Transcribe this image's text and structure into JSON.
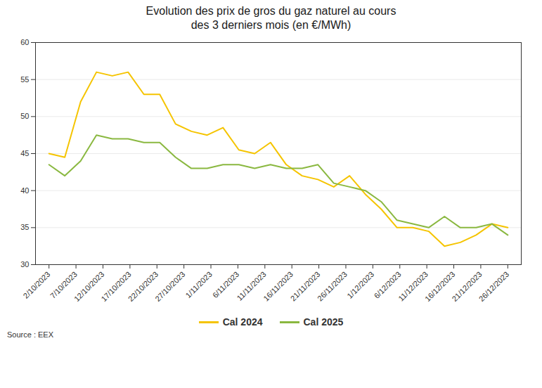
{
  "chart_data": {
    "type": "line",
    "title": "Evolution des prix de gros du gaz naturel au cours\ndes 3 derniers mois (en €/MWh)",
    "caption": "Source : EEX",
    "x": [
      0,
      0.5862068965517241,
      1.1724137931034484,
      1.7586206896551724,
      2.344827586206897,
      2.9310344827586206,
      3.5172413793103448,
      4.103448275862069,
      4.689655172413793,
      5.275862068965517,
      5.862068965517241,
      6.448275862068965,
      7.0344827586206895,
      7.620689655172414,
      8.206896551724139,
      8.793103448275861,
      9.379310344827585,
      9.96551724137931,
      10.551724137931034,
      11.137931034482758,
      11.724137931034482,
      12.310344827586206,
      12.89655172413793,
      13.482758620689655,
      14.068965517241379,
      14.655172413793103,
      15.241379310344827,
      15.827586206896552,
      16.413793103448278,
      17
    ],
    "series": [
      {
        "name": "Cal 2024",
        "color": "#f5c400",
        "values": [
          45.0,
          44.5,
          52.0,
          56.0,
          55.5,
          56.0,
          53.0,
          53.0,
          49.0,
          48.0,
          47.5,
          48.5,
          45.5,
          45.0,
          46.5,
          43.5,
          42.0,
          41.5,
          40.5,
          42.0,
          39.5,
          37.5,
          35.0,
          35.0,
          34.5,
          32.5,
          33.0,
          34.0,
          35.5,
          35.0
        ]
      },
      {
        "name": "Cal 2025",
        "color": "#8ab840",
        "values": [
          43.5,
          42.0,
          44.0,
          47.5,
          47.0,
          47.0,
          46.5,
          46.5,
          44.5,
          43.0,
          43.0,
          43.5,
          43.5,
          43.0,
          43.5,
          43.0,
          43.0,
          43.5,
          41.0,
          40.5,
          40.0,
          38.5,
          36.0,
          35.5,
          35.0,
          36.5,
          35.0,
          35.0,
          35.5,
          34.0
        ]
      }
    ],
    "xlim": [
      -0.5,
      17.5
    ],
    "xticks": [
      {
        "value": 0,
        "label": "2/10/2023"
      },
      {
        "value": 1,
        "label": "7/10/2023"
      },
      {
        "value": 2,
        "label": "12/10/2023"
      },
      {
        "value": 3,
        "label": "17/10/2023"
      },
      {
        "value": 4,
        "label": "22/10/2023"
      },
      {
        "value": 5,
        "label": "27/10/2023"
      },
      {
        "value": 6,
        "label": "1/11/2023"
      },
      {
        "value": 7,
        "label": "6/11/2023"
      },
      {
        "value": 8,
        "label": "11/11/2023"
      },
      {
        "value": 9,
        "label": "16/11/2023"
      },
      {
        "value": 10,
        "label": "21/11/2023"
      },
      {
        "value": 11,
        "label": "26/11/2023"
      },
      {
        "value": 12,
        "label": "1/12/2023"
      },
      {
        "value": 13,
        "label": "6/12/2023"
      },
      {
        "value": 14,
        "label": "11/12/2023"
      },
      {
        "value": 15,
        "label": "16/12/2023"
      },
      {
        "value": 16,
        "label": "21/12/2023"
      },
      {
        "value": 17,
        "label": "26/12/2023"
      }
    ],
    "ylim": [
      30,
      60
    ],
    "yticks": [
      30,
      35,
      40,
      45,
      50,
      55,
      60
    ],
    "grid": "y",
    "legend": "bottom"
  }
}
